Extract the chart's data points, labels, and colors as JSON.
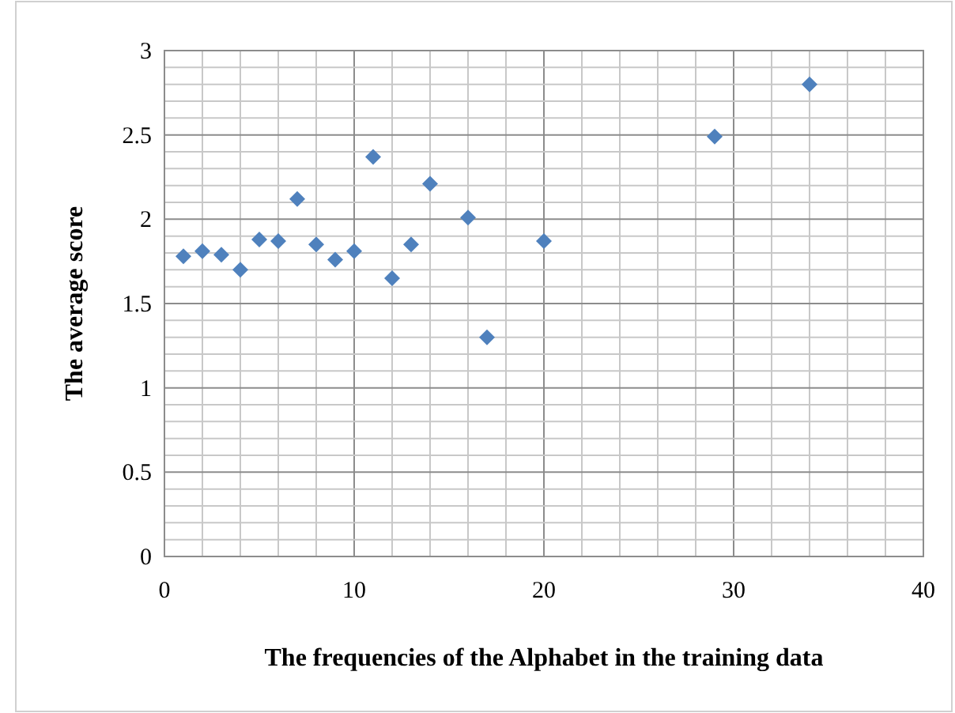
{
  "chart_data": {
    "type": "scatter",
    "xlabel": "The frequencies of the Alphabet in the training data",
    "ylabel": "The average score",
    "marker": "diamond",
    "grid": true,
    "x": [
      1,
      2,
      3,
      4,
      5,
      6,
      7,
      8,
      9,
      10,
      11,
      12,
      13,
      14,
      16,
      17,
      20,
      29,
      34
    ],
    "series": [
      {
        "color": "#4f81bd",
        "values": [
          1.78,
          1.81,
          1.79,
          1.7,
          1.88,
          1.87,
          2.12,
          1.85,
          1.76,
          1.81,
          2.37,
          1.65,
          1.85,
          2.21,
          2.01,
          1.3,
          1.87,
          2.49,
          2.8
        ]
      }
    ],
    "xlim": [
      0,
      40
    ],
    "ylim": [
      0,
      3
    ],
    "xticks": [
      0,
      {
        "value": 2,
        "label": null
      },
      {
        "value": 4,
        "label": null
      },
      {
        "value": 6,
        "label": null
      },
      {
        "value": 8,
        "label": null
      },
      10,
      {
        "value": 12,
        "label": null
      },
      {
        "value": 14,
        "label": null
      },
      {
        "value": 16,
        "label": null
      },
      {
        "value": 18,
        "label": null
      },
      20,
      {
        "value": 22,
        "label": null
      },
      {
        "value": 24,
        "label": null
      },
      {
        "value": 26,
        "label": null
      },
      {
        "value": 28,
        "label": null
      },
      30,
      {
        "value": 32,
        "label": null
      },
      {
        "value": 34,
        "label": null
      },
      {
        "value": 36,
        "label": null
      },
      {
        "value": 38,
        "label": null
      },
      40
    ],
    "yticks": [
      0,
      {
        "value": 0.1,
        "label": null
      },
      {
        "value": 0.2,
        "label": null
      },
      {
        "value": 0.3,
        "label": null
      },
      {
        "value": 0.4,
        "label": null
      },
      0.5,
      {
        "value": 0.6,
        "label": null
      },
      {
        "value": 0.7,
        "label": null
      },
      {
        "value": 0.8,
        "label": null
      },
      {
        "value": 0.9,
        "label": null
      },
      1,
      {
        "value": 1.1,
        "label": null
      },
      {
        "value": 1.2,
        "label": null
      },
      {
        "value": 1.3,
        "label": null
      },
      {
        "value": 1.4,
        "label": null
      },
      1.5,
      {
        "value": 1.6,
        "label": null
      },
      {
        "value": 1.7,
        "label": null
      },
      {
        "value": 1.8,
        "label": null
      },
      {
        "value": 1.9,
        "label": null
      },
      2,
      {
        "value": 2.1,
        "label": null
      },
      {
        "value": 2.2,
        "label": null
      },
      {
        "value": 2.3,
        "label": null
      },
      {
        "value": 2.4,
        "label": null
      },
      2.5,
      {
        "value": 2.6,
        "label": null
      },
      {
        "value": 2.7,
        "label": null
      },
      {
        "value": 2.8,
        "label": null
      },
      {
        "value": 2.9,
        "label": null
      },
      3
    ]
  }
}
